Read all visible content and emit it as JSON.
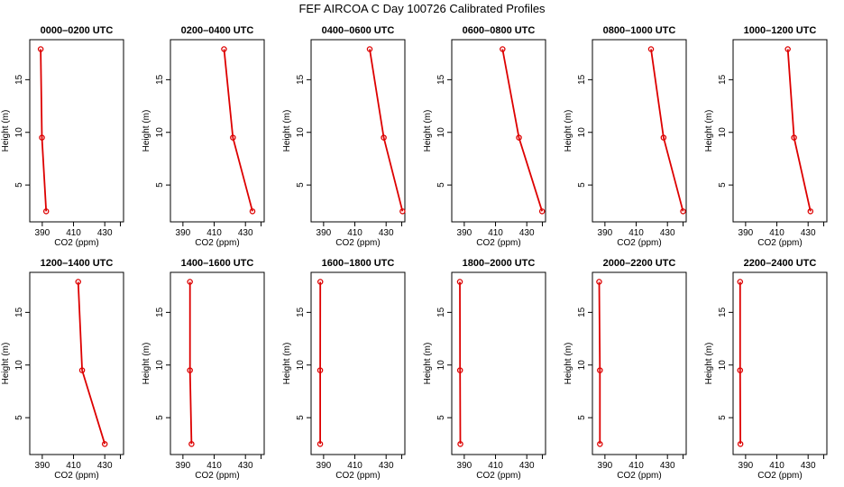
{
  "title": "FEF AIRCOA C  Day 100726  Calibrated Profiles",
  "chart_data": [
    {
      "type": "line",
      "title": "0000–0200 UTC",
      "xlabel": "CO2 (ppm)",
      "ylabel": "Height (m)",
      "xlim": [
        382,
        442
      ],
      "ylim": [
        1.5,
        18.8
      ],
      "xticks": [
        390,
        410,
        430
      ],
      "xtick_labels": [
        "390",
        "410",
        "430"
      ],
      "yticks": [
        5,
        10,
        15
      ],
      "ytick_labels": [
        "5",
        "10",
        "15"
      ],
      "series": [
        {
          "x": [
            392.5,
            389.8,
            389.0
          ],
          "y": [
            2.5,
            9.5,
            17.9
          ],
          "color": "#dd0000"
        }
      ]
    },
    {
      "type": "line",
      "title": "0200–0400 UTC",
      "xlabel": "CO2 (ppm)",
      "ylabel": "Height (m)",
      "xlim": [
        382,
        442
      ],
      "ylim": [
        1.5,
        18.8
      ],
      "xticks": [
        390,
        410,
        430
      ],
      "xtick_labels": [
        "390",
        "410",
        "430"
      ],
      "yticks": [
        5,
        10,
        15
      ],
      "ytick_labels": [
        "5",
        "10",
        "15"
      ],
      "series": [
        {
          "x": [
            434.5,
            422.0,
            416.3
          ],
          "y": [
            2.5,
            9.5,
            17.9
          ],
          "color": "#dd0000"
        }
      ]
    },
    {
      "type": "line",
      "title": "0400–0600 UTC",
      "xlabel": "CO2 (ppm)",
      "ylabel": "Height (m)",
      "xlim": [
        382,
        442
      ],
      "ylim": [
        1.5,
        18.8
      ],
      "xticks": [
        390,
        410,
        430
      ],
      "xtick_labels": [
        "390",
        "410",
        "430"
      ],
      "yticks": [
        5,
        10,
        15
      ],
      "ytick_labels": [
        "5",
        "10",
        "15"
      ],
      "series": [
        {
          "x": [
            440.5,
            428.5,
            419.5
          ],
          "y": [
            2.5,
            9.5,
            17.9
          ],
          "color": "#dd0000"
        }
      ]
    },
    {
      "type": "line",
      "title": "0600–0800 UTC",
      "xlabel": "CO2 (ppm)",
      "ylabel": "Height (m)",
      "xlim": [
        382,
        442
      ],
      "ylim": [
        1.5,
        18.8
      ],
      "xticks": [
        390,
        410,
        430
      ],
      "xtick_labels": [
        "390",
        "410",
        "430"
      ],
      "yticks": [
        5,
        10,
        15
      ],
      "ytick_labels": [
        "5",
        "10",
        "15"
      ],
      "series": [
        {
          "x": [
            439.8,
            425.0,
            414.5
          ],
          "y": [
            2.5,
            9.5,
            17.9
          ],
          "color": "#dd0000"
        }
      ]
    },
    {
      "type": "line",
      "title": "0800–1000 UTC",
      "xlabel": "CO2 (ppm)",
      "ylabel": "Height (m)",
      "xlim": [
        382,
        442
      ],
      "ylim": [
        1.5,
        18.8
      ],
      "xticks": [
        390,
        410,
        430
      ],
      "xtick_labels": [
        "390",
        "410",
        "430"
      ],
      "yticks": [
        5,
        10,
        15
      ],
      "ytick_labels": [
        "5",
        "10",
        "15"
      ],
      "series": [
        {
          "x": [
            440.0,
            427.5,
            419.5
          ],
          "y": [
            2.5,
            9.5,
            17.9
          ],
          "color": "#dd0000"
        }
      ]
    },
    {
      "type": "line",
      "title": "1000–1200 UTC",
      "xlabel": "CO2 (ppm)",
      "ylabel": "Height (m)",
      "xlim": [
        382,
        442
      ],
      "ylim": [
        1.5,
        18.8
      ],
      "xticks": [
        390,
        410,
        430
      ],
      "xtick_labels": [
        "390",
        "410",
        "430"
      ],
      "yticks": [
        5,
        10,
        15
      ],
      "ytick_labels": [
        "5",
        "10",
        "15"
      ],
      "series": [
        {
          "x": [
            431.5,
            421.0,
            417.0
          ],
          "y": [
            2.5,
            9.5,
            17.9
          ],
          "color": "#dd0000"
        }
      ]
    },
    {
      "type": "line",
      "title": "1200–1400 UTC",
      "xlabel": "CO2 (ppm)",
      "ylabel": "Height (m)",
      "xlim": [
        382,
        442
      ],
      "ylim": [
        1.5,
        18.8
      ],
      "xticks": [
        390,
        410,
        430
      ],
      "xtick_labels": [
        "390",
        "410",
        "430"
      ],
      "yticks": [
        5,
        10,
        15
      ],
      "ytick_labels": [
        "5",
        "10",
        "15"
      ],
      "series": [
        {
          "x": [
            430.0,
            415.5,
            413.0
          ],
          "y": [
            2.5,
            9.5,
            17.9
          ],
          "color": "#dd0000"
        }
      ]
    },
    {
      "type": "line",
      "title": "1400–1600 UTC",
      "xlabel": "CO2 (ppm)",
      "ylabel": "Height (m)",
      "xlim": [
        382,
        442
      ],
      "ylim": [
        1.5,
        18.8
      ],
      "xticks": [
        390,
        410,
        430
      ],
      "xtick_labels": [
        "390",
        "410",
        "430"
      ],
      "yticks": [
        5,
        10,
        15
      ],
      "ytick_labels": [
        "5",
        "10",
        "15"
      ],
      "series": [
        {
          "x": [
            395.5,
            394.5,
            394.5
          ],
          "y": [
            2.5,
            9.5,
            17.9
          ],
          "color": "#dd0000"
        }
      ]
    },
    {
      "type": "line",
      "title": "1600–1800 UTC",
      "xlabel": "CO2 (ppm)",
      "ylabel": "Height (m)",
      "xlim": [
        382,
        442
      ],
      "ylim": [
        1.5,
        18.8
      ],
      "xticks": [
        390,
        410,
        430
      ],
      "xtick_labels": [
        "390",
        "410",
        "430"
      ],
      "yticks": [
        5,
        10,
        15
      ],
      "ytick_labels": [
        "5",
        "10",
        "15"
      ],
      "series": [
        {
          "x": [
            387.8,
            387.8,
            387.9
          ],
          "y": [
            2.5,
            9.5,
            17.9
          ],
          "color": "#dd0000"
        }
      ]
    },
    {
      "type": "line",
      "title": "1800–2000 UTC",
      "xlabel": "CO2 (ppm)",
      "ylabel": "Height (m)",
      "xlim": [
        382,
        442
      ],
      "ylim": [
        1.5,
        18.8
      ],
      "xticks": [
        390,
        410,
        430
      ],
      "xtick_labels": [
        "390",
        "410",
        "430"
      ],
      "yticks": [
        5,
        10,
        15
      ],
      "ytick_labels": [
        "5",
        "10",
        "15"
      ],
      "series": [
        {
          "x": [
            387.5,
            387.3,
            387.2
          ],
          "y": [
            2.5,
            9.5,
            17.9
          ],
          "color": "#dd0000"
        }
      ]
    },
    {
      "type": "line",
      "title": "2000–2200 UTC",
      "xlabel": "CO2 (ppm)",
      "ylabel": "Height (m)",
      "xlim": [
        382,
        442
      ],
      "ylim": [
        1.5,
        18.8
      ],
      "xticks": [
        390,
        410,
        430
      ],
      "xtick_labels": [
        "390",
        "410",
        "430"
      ],
      "yticks": [
        5,
        10,
        15
      ],
      "ytick_labels": [
        "5",
        "10",
        "15"
      ],
      "series": [
        {
          "x": [
            386.8,
            386.8,
            386.3
          ],
          "y": [
            2.5,
            9.5,
            17.9
          ],
          "color": "#dd0000"
        }
      ]
    },
    {
      "type": "line",
      "title": "2200–2400 UTC",
      "xlabel": "CO2 (ppm)",
      "ylabel": "Height (m)",
      "xlim": [
        382,
        442
      ],
      "ylim": [
        1.5,
        18.8
      ],
      "xticks": [
        390,
        410,
        430
      ],
      "xtick_labels": [
        "390",
        "410",
        "430"
      ],
      "yticks": [
        5,
        10,
        15
      ],
      "ytick_labels": [
        "5",
        "10",
        "15"
      ],
      "series": [
        {
          "x": [
            386.7,
            386.5,
            386.5
          ],
          "y": [
            2.5,
            9.5,
            17.9
          ],
          "color": "#dd0000"
        }
      ]
    }
  ]
}
